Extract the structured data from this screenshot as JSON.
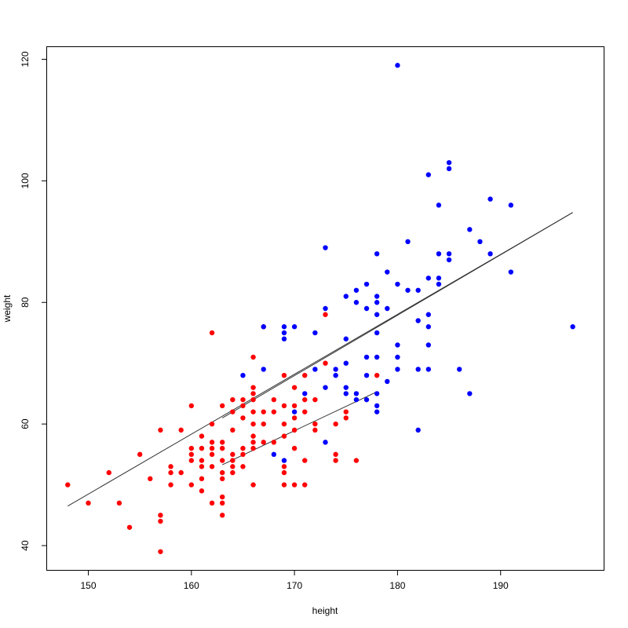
{
  "chart_data": {
    "type": "scatter",
    "title": "",
    "xlabel": "height",
    "ylabel": "weight",
    "xlim": [
      146,
      200
    ],
    "ylim": [
      36.0,
      122.0
    ],
    "xticks": [
      150,
      160,
      170,
      180,
      190
    ],
    "yticks": [
      40,
      60,
      80,
      100,
      120
    ],
    "xtick_labels": [
      "150",
      "160",
      "170",
      "180",
      "190"
    ],
    "ytick_labels": [
      "40",
      "60",
      "80",
      "100",
      "120"
    ],
    "grid": false,
    "legend": "none",
    "series": [
      {
        "color": "#ff0000",
        "points": [
          [
            148,
            50
          ],
          [
            150,
            47
          ],
          [
            152,
            52
          ],
          [
            153,
            47
          ],
          [
            154,
            43
          ],
          [
            155,
            55
          ],
          [
            156,
            51
          ],
          [
            157,
            59
          ],
          [
            157,
            45
          ],
          [
            157,
            44
          ],
          [
            157,
            39
          ],
          [
            158,
            53
          ],
          [
            158,
            52
          ],
          [
            158,
            50
          ],
          [
            159,
            59
          ],
          [
            159,
            52
          ],
          [
            160,
            63
          ],
          [
            160,
            56
          ],
          [
            160,
            55
          ],
          [
            160,
            54
          ],
          [
            160,
            50
          ],
          [
            161,
            58
          ],
          [
            161,
            56
          ],
          [
            161,
            54
          ],
          [
            161,
            53
          ],
          [
            161,
            51
          ],
          [
            161,
            49
          ],
          [
            162,
            75
          ],
          [
            162,
            60
          ],
          [
            162,
            57
          ],
          [
            162,
            56
          ],
          [
            162,
            55
          ],
          [
            162,
            53
          ],
          [
            162,
            47
          ],
          [
            163,
            63
          ],
          [
            163,
            57
          ],
          [
            163,
            56
          ],
          [
            163,
            54
          ],
          [
            163,
            52
          ],
          [
            163,
            51
          ],
          [
            163,
            48
          ],
          [
            163,
            47
          ],
          [
            163,
            45
          ],
          [
            164,
            64
          ],
          [
            164,
            62
          ],
          [
            164,
            59
          ],
          [
            164,
            55
          ],
          [
            164,
            54
          ],
          [
            164,
            53
          ],
          [
            164,
            52
          ],
          [
            165,
            64
          ],
          [
            165,
            63
          ],
          [
            165,
            61
          ],
          [
            165,
            56
          ],
          [
            165,
            55
          ],
          [
            165,
            53
          ],
          [
            166,
            71
          ],
          [
            166,
            66
          ],
          [
            166,
            65
          ],
          [
            166,
            64
          ],
          [
            166,
            62
          ],
          [
            166,
            60
          ],
          [
            166,
            58
          ],
          [
            166,
            57
          ],
          [
            166,
            56
          ],
          [
            166,
            50
          ],
          [
            167,
            76
          ],
          [
            167,
            62
          ],
          [
            167,
            60
          ],
          [
            167,
            57
          ],
          [
            168,
            64
          ],
          [
            168,
            62
          ],
          [
            168,
            57
          ],
          [
            169,
            68
          ],
          [
            169,
            63
          ],
          [
            169,
            60
          ],
          [
            169,
            58
          ],
          [
            169,
            53
          ],
          [
            169,
            52
          ],
          [
            169,
            50
          ],
          [
            170,
            66
          ],
          [
            170,
            63
          ],
          [
            170,
            61
          ],
          [
            170,
            59
          ],
          [
            170,
            56
          ],
          [
            170,
            50
          ],
          [
            171,
            68
          ],
          [
            171,
            64
          ],
          [
            171,
            62
          ],
          [
            171,
            54
          ],
          [
            171,
            50
          ],
          [
            172,
            64
          ],
          [
            172,
            60
          ],
          [
            172,
            59
          ],
          [
            173,
            78
          ],
          [
            173,
            70
          ],
          [
            174,
            60
          ],
          [
            174,
            55
          ],
          [
            174,
            54
          ],
          [
            175,
            62
          ],
          [
            175,
            61
          ],
          [
            176,
            54
          ],
          [
            178,
            68
          ]
        ]
      },
      {
        "color": "#0000ff",
        "points": [
          [
            165,
            68
          ],
          [
            167,
            76
          ],
          [
            167,
            69
          ],
          [
            168,
            55
          ],
          [
            169,
            76
          ],
          [
            169,
            75
          ],
          [
            169,
            74
          ],
          [
            169,
            54
          ],
          [
            170,
            76
          ],
          [
            170,
            62
          ],
          [
            171,
            65
          ],
          [
            172,
            75
          ],
          [
            172,
            69
          ],
          [
            173,
            89
          ],
          [
            173,
            79
          ],
          [
            173,
            66
          ],
          [
            173,
            57
          ],
          [
            174,
            69
          ],
          [
            174,
            68
          ],
          [
            175,
            81
          ],
          [
            175,
            74
          ],
          [
            175,
            70
          ],
          [
            175,
            66
          ],
          [
            175,
            65
          ],
          [
            176,
            82
          ],
          [
            176,
            80
          ],
          [
            176,
            65
          ],
          [
            176,
            64
          ],
          [
            177,
            83
          ],
          [
            177,
            79
          ],
          [
            177,
            71
          ],
          [
            177,
            68
          ],
          [
            177,
            64
          ],
          [
            178,
            88
          ],
          [
            178,
            81
          ],
          [
            178,
            80
          ],
          [
            178,
            78
          ],
          [
            178,
            75
          ],
          [
            178,
            71
          ],
          [
            178,
            65
          ],
          [
            178,
            63
          ],
          [
            178,
            62
          ],
          [
            179,
            85
          ],
          [
            179,
            79
          ],
          [
            179,
            67
          ],
          [
            180,
            119
          ],
          [
            180,
            83
          ],
          [
            180,
            73
          ],
          [
            180,
            71
          ],
          [
            180,
            69
          ],
          [
            181,
            90
          ],
          [
            181,
            82
          ],
          [
            182,
            82
          ],
          [
            182,
            77
          ],
          [
            182,
            69
          ],
          [
            182,
            59
          ],
          [
            183,
            101
          ],
          [
            183,
            84
          ],
          [
            183,
            78
          ],
          [
            183,
            76
          ],
          [
            183,
            73
          ],
          [
            183,
            69
          ],
          [
            184,
            96
          ],
          [
            184,
            88
          ],
          [
            184,
            84
          ],
          [
            184,
            83
          ],
          [
            185,
            103
          ],
          [
            185,
            102
          ],
          [
            185,
            88
          ],
          [
            185,
            87
          ],
          [
            186,
            69
          ],
          [
            187,
            92
          ],
          [
            187,
            65
          ],
          [
            188,
            90
          ],
          [
            189,
            97
          ],
          [
            189,
            88
          ],
          [
            191,
            96
          ],
          [
            191,
            85
          ],
          [
            197,
            76
          ]
        ]
      }
    ],
    "lines": [
      {
        "color": "#333333",
        "points": [
          [
            148,
            46.5
          ],
          [
            197,
            94.8
          ]
        ]
      },
      {
        "color": "#333333",
        "points": [
          [
            163,
            61
          ],
          [
            197,
            94.8
          ]
        ]
      },
      {
        "color": "#333333",
        "points": [
          [
            163,
            53.3
          ],
          [
            178,
            65.3
          ]
        ]
      }
    ]
  }
}
